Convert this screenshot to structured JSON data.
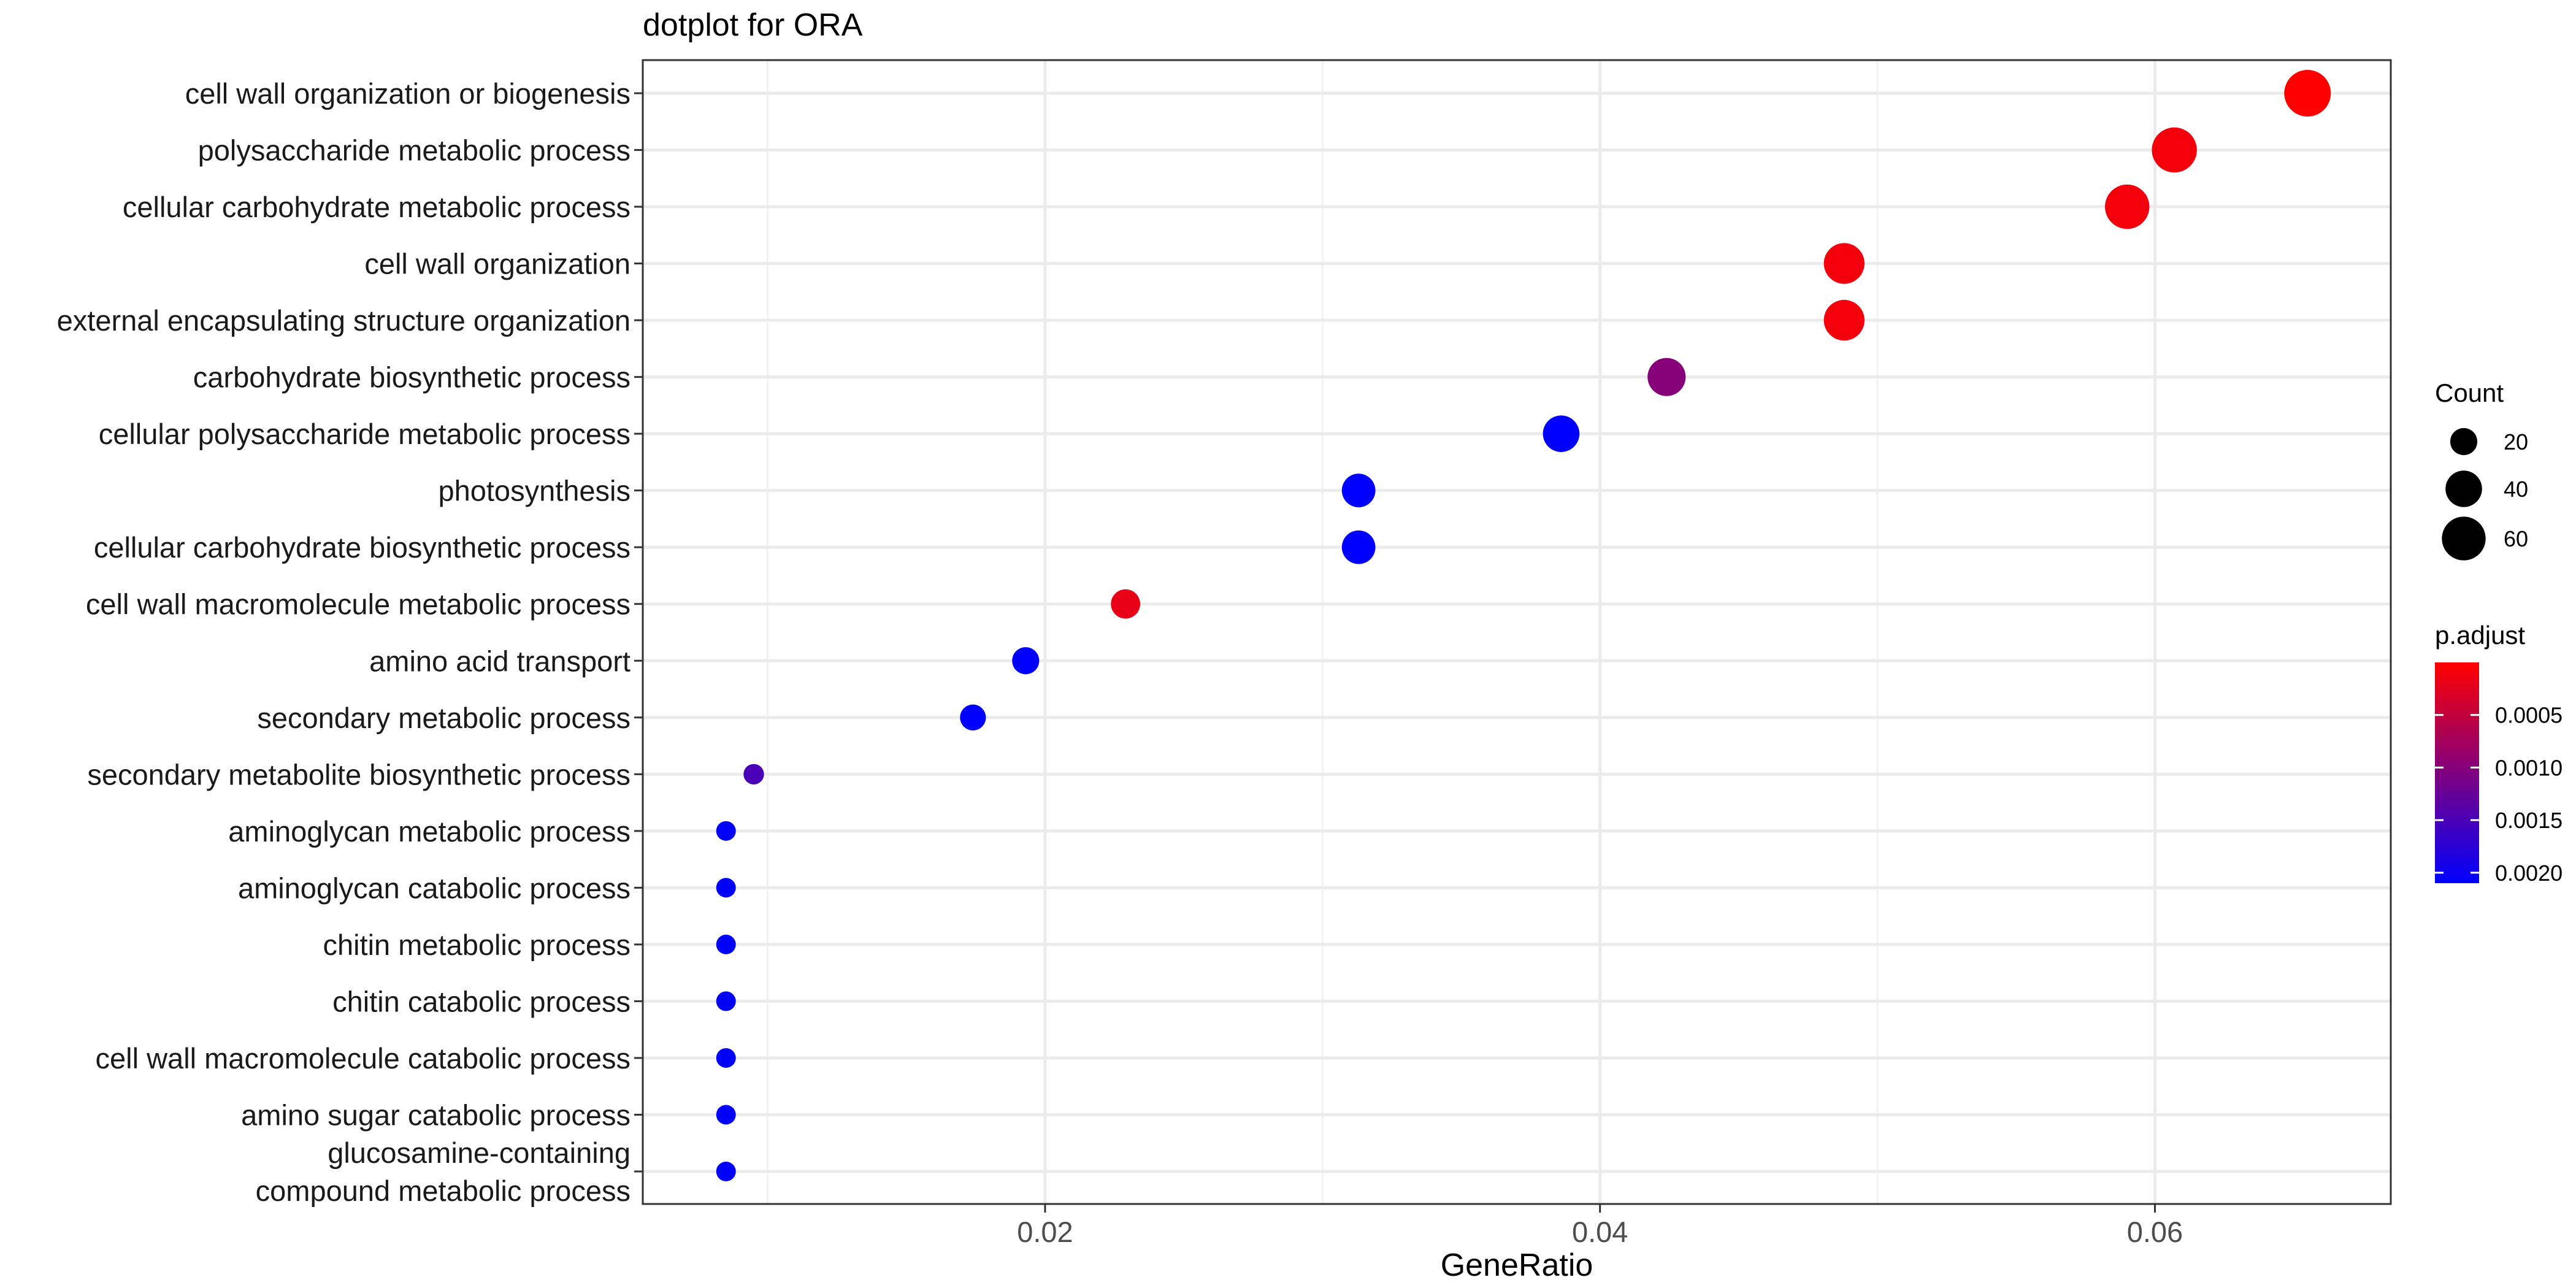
{
  "chart_data": {
    "type": "scatter",
    "title": "dotplot for ORA",
    "xlabel": "GeneRatio",
    "ylabel": "",
    "xlim": [
      0.0055,
      0.0685
    ],
    "xticks": [
      0.02,
      0.04,
      0.06
    ],
    "xtick_labels": [
      "0.02",
      "0.04",
      "0.06"
    ],
    "grid": true,
    "categories": [
      "cell wall organization or biogenesis",
      "polysaccharide metabolic process",
      "cellular carbohydrate metabolic process",
      "cell wall organization",
      "external encapsulating structure organization",
      "carbohydrate biosynthetic process",
      "cellular polysaccharide metabolic process",
      "photosynthesis",
      "cellular carbohydrate biosynthetic process",
      "cell wall macromolecule metabolic process",
      "amino acid transport",
      "secondary metabolic process",
      "secondary metabolite biosynthetic process",
      "aminoglycan metabolic process",
      "aminoglycan catabolic process",
      "chitin metabolic process",
      "chitin catabolic process",
      "cell wall macromolecule catabolic process",
      "amino sugar catabolic process",
      "glucosamine-containing compound metabolic process"
    ],
    "category_display": [
      [
        "cell wall organization or biogenesis"
      ],
      [
        "polysaccharide metabolic process"
      ],
      [
        "cellular carbohydrate metabolic process"
      ],
      [
        "cell wall organization"
      ],
      [
        "external encapsulating structure organization"
      ],
      [
        "carbohydrate biosynthetic process"
      ],
      [
        "cellular polysaccharide metabolic process"
      ],
      [
        "photosynthesis"
      ],
      [
        "cellular carbohydrate biosynthetic process"
      ],
      [
        "cell wall macromolecule metabolic process"
      ],
      [
        "amino acid transport"
      ],
      [
        "secondary metabolic process"
      ],
      [
        "secondary metabolite biosynthetic process"
      ],
      [
        "aminoglycan metabolic process"
      ],
      [
        "aminoglycan catabolic process"
      ],
      [
        "chitin metabolic process"
      ],
      [
        "chitin catabolic process"
      ],
      [
        "cell wall macromolecule catabolic process"
      ],
      [
        "amino sugar catabolic process"
      ],
      [
        "glucosamine-containing",
        "compound metabolic process"
      ]
    ],
    "gene_ratio": [
      0.0655,
      0.0607,
      0.059,
      0.0488,
      0.0488,
      0.0424,
      0.0386,
      0.0313,
      0.0313,
      0.0229,
      0.0193,
      0.0174,
      0.0095,
      0.0085,
      0.0085,
      0.0085,
      0.0085,
      0.0085,
      0.0085,
      0.0085
    ],
    "count": [
      69,
      64,
      62,
      51,
      51,
      44,
      40,
      33,
      33,
      24,
      20,
      18,
      10,
      9,
      9,
      9,
      9,
      9,
      9,
      9
    ],
    "p_adjust": [
      0.0,
      0.0001,
      0.0001,
      0.0001,
      0.0001,
      0.001,
      0.0021,
      0.0021,
      0.0021,
      0.0002,
      0.0021,
      0.0021,
      0.0015,
      0.0021,
      0.0021,
      0.0021,
      0.0021,
      0.0021,
      0.0021,
      0.0021
    ],
    "size_legend": {
      "title": "Count",
      "values": [
        20,
        40,
        60
      ],
      "labels": [
        "20",
        "40",
        "60"
      ]
    },
    "color_legend": {
      "title": "p.adjust",
      "range": [
        0.0,
        0.0021
      ],
      "ticks": [
        0.0005,
        0.001,
        0.0015,
        0.002
      ],
      "labels": [
        "0.0005",
        "0.0010",
        "0.0015",
        "0.0020"
      ],
      "low_color": "#ff0000",
      "high_color": "#0000ff"
    }
  }
}
